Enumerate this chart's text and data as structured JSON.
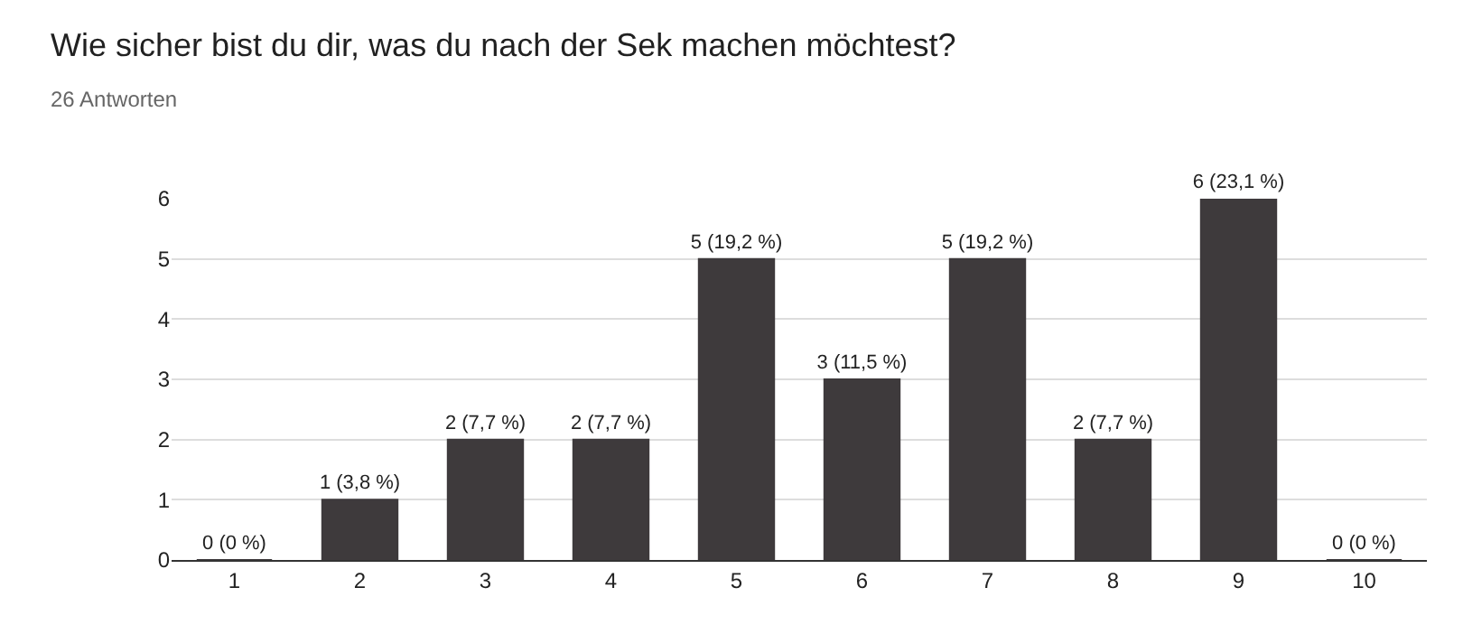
{
  "chart_data": {
    "type": "bar",
    "title": "Wie sicher bist du dir, was du nach der Sek machen möchtest?",
    "subtitle": "26 Antworten",
    "categories": [
      "1",
      "2",
      "3",
      "4",
      "5",
      "6",
      "7",
      "8",
      "9",
      "10"
    ],
    "values": [
      0,
      1,
      2,
      2,
      5,
      3,
      5,
      2,
      6,
      0
    ],
    "value_labels": [
      "0 (0 %)",
      "1 (3,8 %)",
      "2 (7,7 %)",
      "2 (7,7 %)",
      "5 (19,2 %)",
      "3 (11,5 %)",
      "5 (19,2 %)",
      "2 (7,7 %)",
      "6 (23,1 %)",
      "0 (0 %)"
    ],
    "color": "#3e3a3c",
    "ylim": [
      0,
      6
    ],
    "yticks": [
      0,
      1,
      2,
      3,
      4,
      5,
      6
    ],
    "grid": "y",
    "legend": false
  }
}
